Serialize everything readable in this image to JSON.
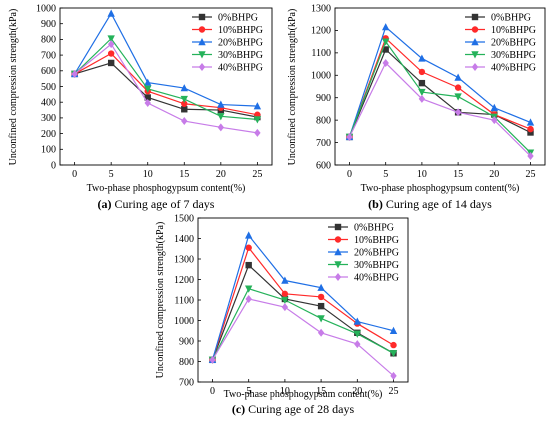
{
  "chart_data": [
    {
      "type": "line",
      "caption_letter": "(a)",
      "caption_text": " Curing age of 7 days",
      "xlabel": "Two-phase phosphogypsum content(%)",
      "ylabel": "Unconfined compression strength(kPa)",
      "x": [
        0,
        5,
        10,
        15,
        20,
        25
      ],
      "xlim": [
        -2,
        27
      ],
      "ylim": [
        0,
        1000
      ],
      "yticks": [
        0,
        100,
        200,
        300,
        400,
        500,
        600,
        700,
        800,
        900,
        1000
      ],
      "legend_position": "top-right",
      "series": [
        {
          "name": "0%BHPG",
          "color": "#333333",
          "marker": "square",
          "values": [
            580,
            650,
            430,
            355,
            350,
            305
          ]
        },
        {
          "name": "10%BHPG",
          "color": "#ff2a2a",
          "marker": "circle",
          "values": [
            580,
            710,
            470,
            390,
            365,
            320
          ]
        },
        {
          "name": "20%BHPG",
          "color": "#1f6fe5",
          "marker": "triangle",
          "values": [
            580,
            965,
            525,
            490,
            385,
            375
          ]
        },
        {
          "name": "30%BHPG",
          "color": "#25b25a",
          "marker": "tri-down",
          "values": [
            580,
            805,
            485,
            420,
            310,
            290
          ]
        },
        {
          "name": "40%BHPG",
          "color": "#c77ce8",
          "marker": "diamond",
          "values": [
            580,
            770,
            395,
            280,
            240,
            205
          ]
        }
      ]
    },
    {
      "type": "line",
      "caption_letter": "(b)",
      "caption_text": " Curing age of 14 days",
      "xlabel": "Two-phase phosphogypsum content(%)",
      "ylabel": "Unconfined compression strength(kPa)",
      "x": [
        0,
        5,
        10,
        15,
        20,
        25
      ],
      "xlim": [
        -2,
        27
      ],
      "ylim": [
        600,
        1300
      ],
      "yticks": [
        600,
        700,
        800,
        900,
        1000,
        1100,
        1200,
        1300
      ],
      "legend_position": "top-right",
      "series": [
        {
          "name": "0%BHPG",
          "color": "#333333",
          "marker": "square",
          "values": [
            725,
            1115,
            965,
            835,
            825,
            745
          ]
        },
        {
          "name": "10%BHPG",
          "color": "#ff2a2a",
          "marker": "circle",
          "values": [
            725,
            1165,
            1015,
            945,
            825,
            760
          ]
        },
        {
          "name": "20%BHPG",
          "color": "#1f6fe5",
          "marker": "triangle",
          "values": [
            725,
            1215,
            1075,
            990,
            855,
            790
          ]
        },
        {
          "name": "30%BHPG",
          "color": "#25b25a",
          "marker": "tri-down",
          "values": [
            725,
            1150,
            925,
            905,
            815,
            655
          ]
        },
        {
          "name": "40%BHPG",
          "color": "#c77ce8",
          "marker": "diamond",
          "values": [
            725,
            1055,
            895,
            835,
            800,
            640
          ]
        }
      ]
    },
    {
      "type": "line",
      "caption_letter": "(c)",
      "caption_text": " Curing age of 28 days",
      "xlabel": "Two-phase phosphogypsum content(%)",
      "ylabel": "Unconfined compression strength(kPa)",
      "x": [
        0,
        5,
        10,
        15,
        20,
        25
      ],
      "xlim": [
        -2,
        27
      ],
      "ylim": [
        700,
        1500
      ],
      "yticks": [
        700,
        800,
        900,
        1000,
        1100,
        1200,
        1300,
        1400,
        1500
      ],
      "legend_position": "top-right",
      "series": [
        {
          "name": "0%BHPG",
          "color": "#333333",
          "marker": "square",
          "values": [
            808,
            1270,
            1105,
            1070,
            940,
            840
          ]
        },
        {
          "name": "10%BHPG",
          "color": "#ff2a2a",
          "marker": "circle",
          "values": [
            808,
            1355,
            1130,
            1115,
            985,
            880
          ]
        },
        {
          "name": "20%BHPG",
          "color": "#1f6fe5",
          "marker": "triangle",
          "values": [
            808,
            1415,
            1195,
            1160,
            995,
            950
          ]
        },
        {
          "name": "30%BHPG",
          "color": "#25b25a",
          "marker": "tri-down",
          "values": [
            808,
            1155,
            1100,
            1010,
            935,
            840
          ]
        },
        {
          "name": "40%BHPG",
          "color": "#c77ce8",
          "marker": "diamond",
          "values": [
            808,
            1105,
            1065,
            940,
            885,
            730
          ]
        }
      ]
    }
  ]
}
